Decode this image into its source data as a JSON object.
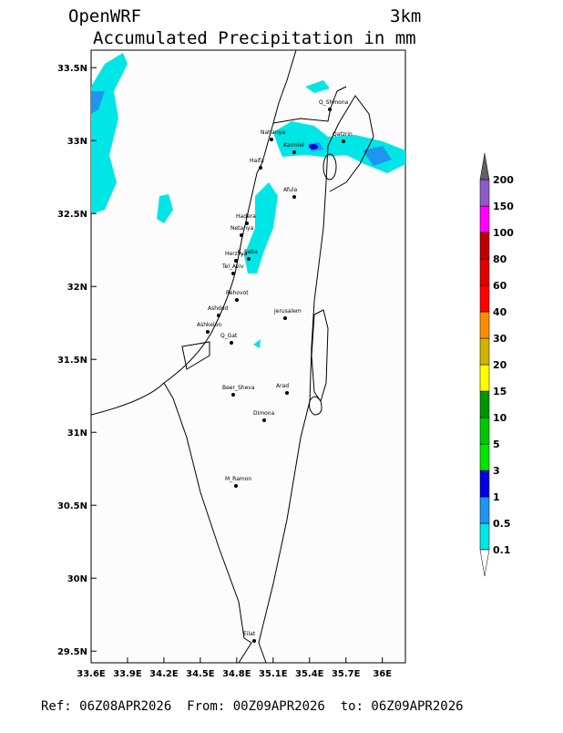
{
  "header": {
    "model": "OpenWRF",
    "resolution": "3km",
    "title": "Accumulated Precipitation in mm"
  },
  "map": {
    "xlim": [
      33.6,
      36.19
    ],
    "ylim": [
      29.42,
      33.62
    ],
    "xticks": [
      {
        "value": 33.6,
        "label": "33.6E"
      },
      {
        "value": 33.9,
        "label": "33.9E"
      },
      {
        "value": 34.2,
        "label": "34.2E"
      },
      {
        "value": 34.5,
        "label": "34.5E"
      },
      {
        "value": 34.8,
        "label": "34.8E"
      },
      {
        "value": 35.1,
        "label": "35.1E"
      },
      {
        "value": 35.4,
        "label": "35.4E"
      },
      {
        "value": 35.7,
        "label": "35.7E"
      },
      {
        "value": 36,
        "label": "36E"
      }
    ],
    "yticks": [
      {
        "value": 33.5,
        "label": "33.5N"
      },
      {
        "value": 33,
        "label": "33N"
      },
      {
        "value": 32.5,
        "label": "32.5N"
      },
      {
        "value": 32,
        "label": "32N"
      },
      {
        "value": 31.5,
        "label": "31.5N"
      },
      {
        "value": 31,
        "label": "31N"
      },
      {
        "value": 30.5,
        "label": "30.5N"
      },
      {
        "value": 30,
        "label": "30N"
      },
      {
        "value": 29.5,
        "label": "29.5N"
      }
    ],
    "cities": [
      "Q_Shmona",
      "Nahariya",
      "Karmiel",
      "Qatzrin",
      "Haifa",
      "Afula",
      "Hadera",
      "Netanya",
      "Herzliya",
      "K_Saba",
      "Tel_Aviv",
      "Rehovot",
      "Ashdod",
      "Ashkelon",
      "Q_Gat",
      "Jerusalem",
      "Beer_Sheva",
      "Arad",
      "Dimona",
      "M_Ramon",
      "Eilat"
    ]
  },
  "colorbar": {
    "levels": [
      0.1,
      0.5,
      1,
      3,
      5,
      10,
      15,
      20,
      30,
      40,
      60,
      80,
      100,
      150,
      200
    ],
    "colors": [
      "#00e6e6",
      "#1e96f0",
      "#0000e0",
      "#00e600",
      "#00c800",
      "#009600",
      "#ffff00",
      "#d2b400",
      "#ff8c00",
      "#ff0000",
      "#e00000",
      "#c00000",
      "#ff00ff",
      "#8c5cc8",
      "#606060"
    ]
  },
  "footer": "Ref: 06Z08APR2026  From: 00Z09APR2026  to: 06Z09APR2026"
}
